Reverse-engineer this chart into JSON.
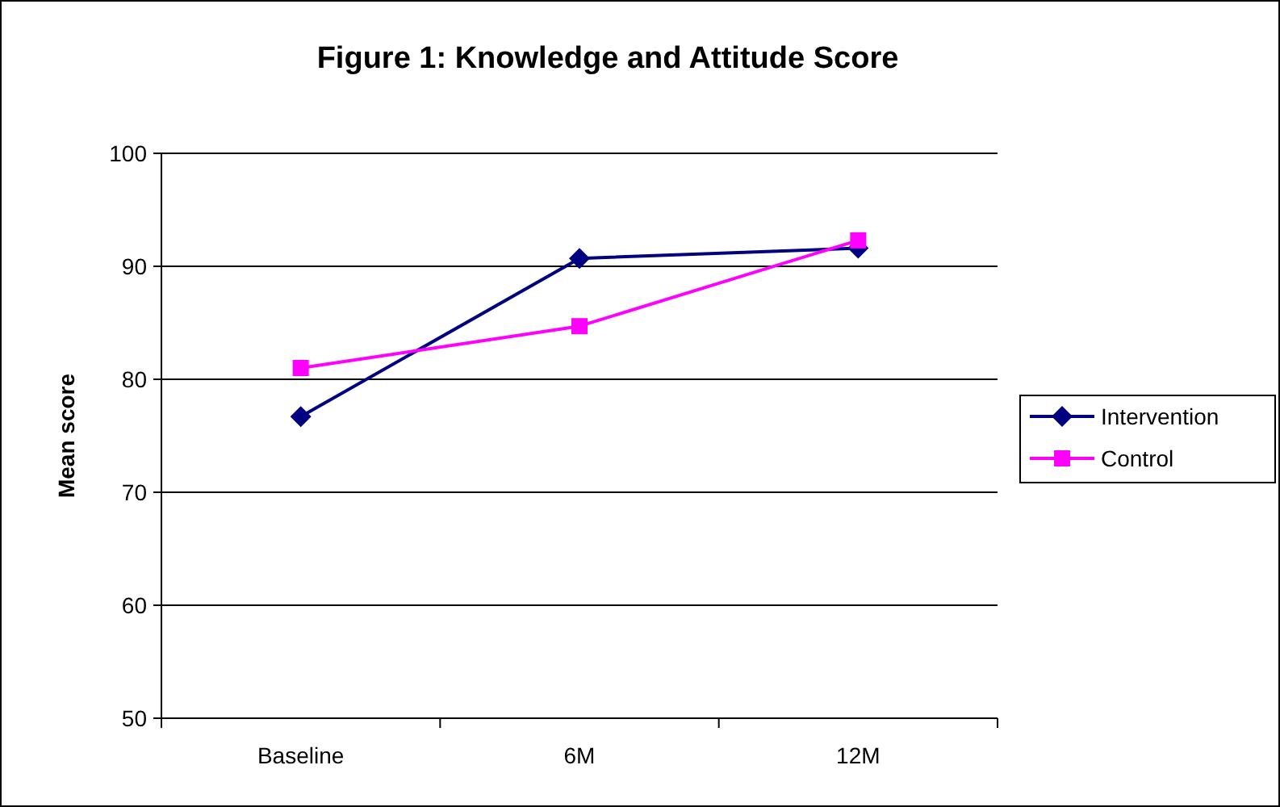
{
  "chart_data": {
    "type": "line",
    "title": "Figure 1: Knowledge and Attitude Score",
    "ylabel": "Mean score",
    "categories": [
      "Baseline",
      "6M",
      "12M"
    ],
    "series": [
      {
        "name": "Intervention",
        "color": "#000080",
        "values": [
          76.7,
          90.7,
          91.6
        ],
        "marker": "diamond"
      },
      {
        "name": "Control",
        "color": "#ff00ff",
        "values": [
          81.0,
          84.7,
          92.3
        ],
        "marker": "square"
      }
    ],
    "ylim": [
      50,
      100
    ],
    "yticks": [
      50,
      60,
      70,
      80,
      90,
      100
    ],
    "grid": "y",
    "legend": "right",
    "line_style": "solid"
  }
}
